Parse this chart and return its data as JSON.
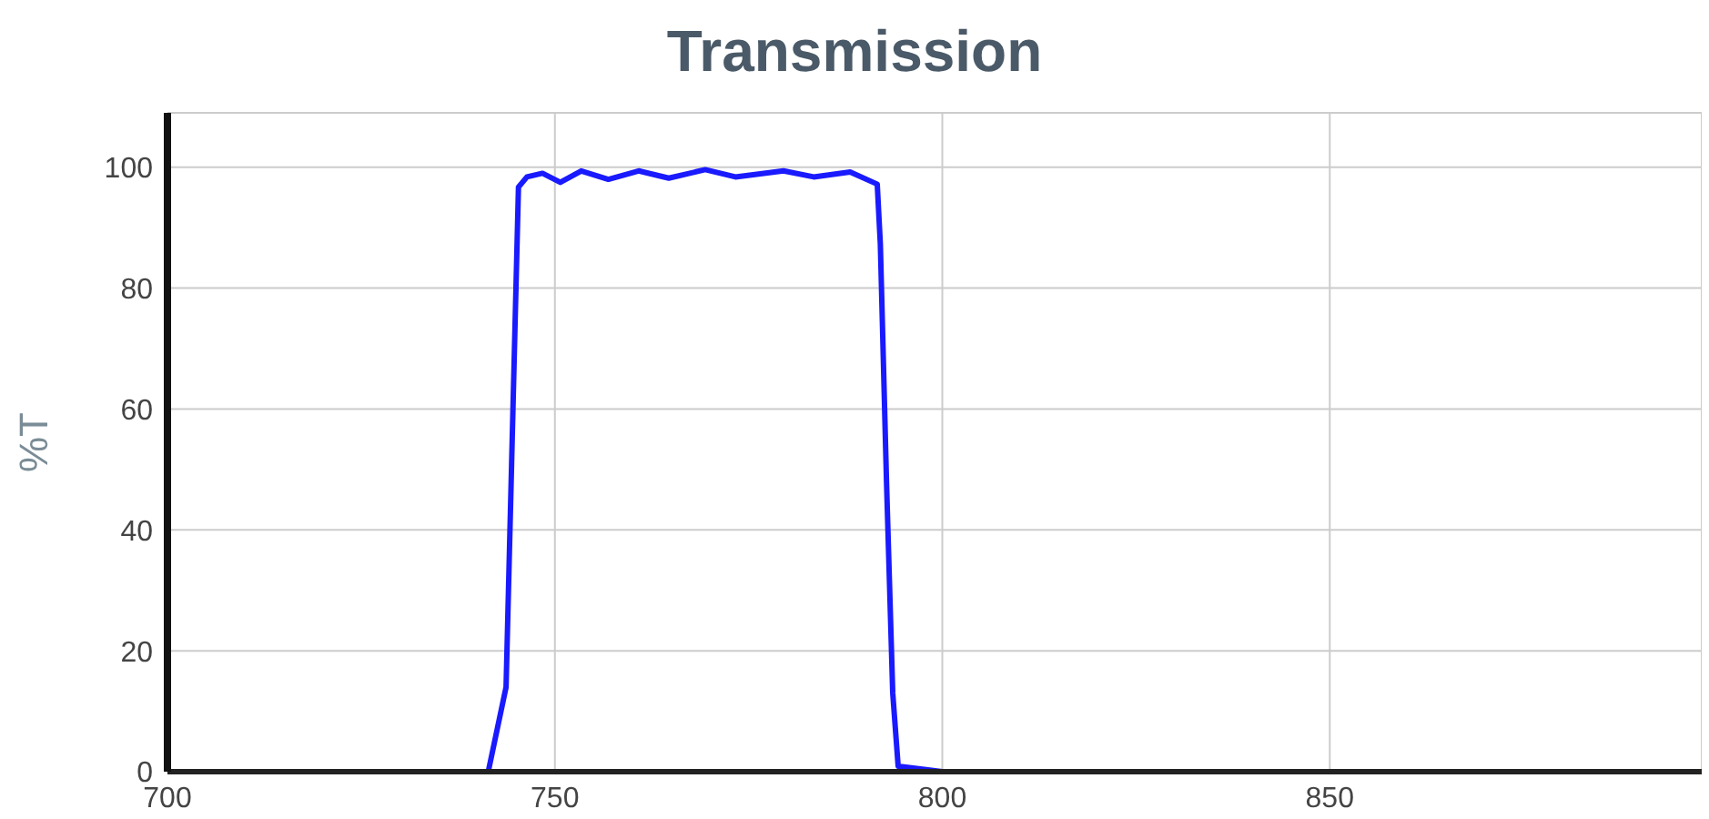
{
  "chart_data": {
    "type": "line",
    "title": "Transmission",
    "ylabel": "%T",
    "xlim": [
      700,
      898
    ],
    "xticks": [
      700,
      750,
      800,
      850
    ],
    "ylim": [
      0,
      109
    ],
    "yticks": [
      0,
      20,
      40,
      60,
      80,
      100
    ],
    "grid": true,
    "marker": "none",
    "line_style": "solid",
    "series": [
      {
        "color": "#1a1aff",
        "x": [
          700,
          720,
          741.4,
          743.7,
          745.3,
          746.4,
          748.4,
          750.7,
          753.4,
          756.9,
          760.8,
          764.7,
          769.4,
          773.3,
          779.5,
          783.4,
          788.1,
          791.6,
          792,
          792.8,
          793.6,
          794.3,
          800,
          850,
          898
        ],
        "values": [
          0,
          0,
          0,
          14,
          96.7,
          98.4,
          99,
          97.5,
          99.4,
          98,
          99.4,
          98.2,
          99.6,
          98.4,
          99.4,
          98.4,
          99.2,
          97.2,
          87.3,
          47.8,
          13,
          0.9,
          0,
          0,
          0
        ]
      }
    ]
  }
}
